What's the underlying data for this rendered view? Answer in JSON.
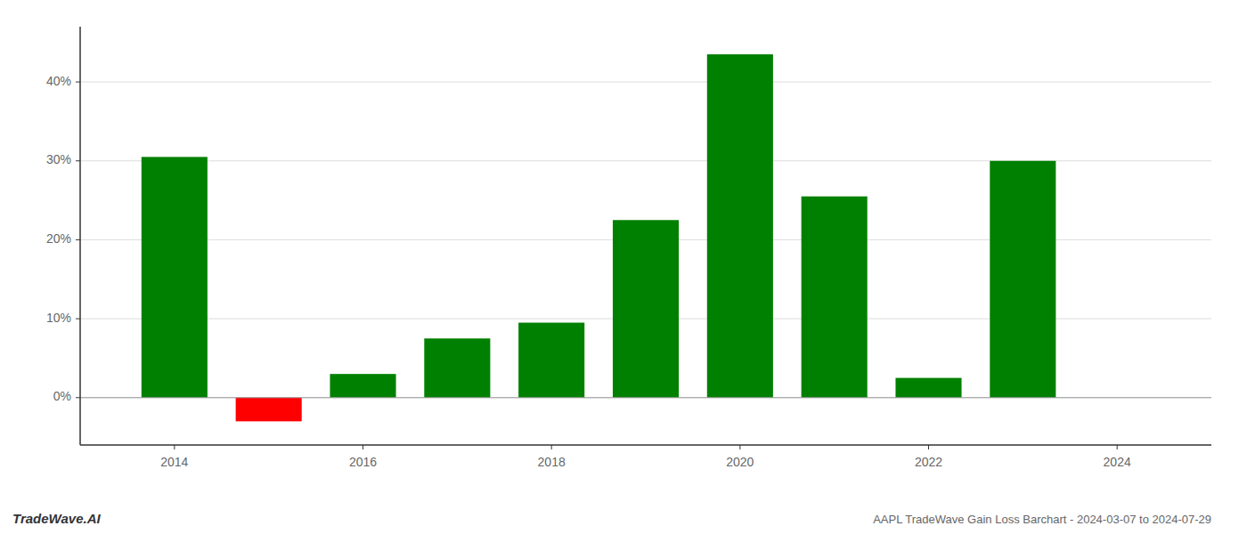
{
  "chart_data": {
    "type": "bar",
    "title": "AAPL TradeWave Gain Loss Barchart - 2024-03-07 to 2024-07-29",
    "annotations": [
      "TradeWave.AI"
    ],
    "x": [
      2014,
      2015,
      2016,
      2017,
      2018,
      2019,
      2020,
      2021,
      2022,
      2023
    ],
    "values": [
      30.5,
      -3.0,
      3.0,
      7.5,
      9.5,
      22.5,
      43.5,
      25.5,
      2.5,
      30.0
    ],
    "colors": [
      "#008000",
      "#ff0000",
      "#008000",
      "#008000",
      "#008000",
      "#008000",
      "#008000",
      "#008000",
      "#008000",
      "#008000"
    ],
    "xlim": [
      2013,
      2025
    ],
    "xticks": [
      2014,
      2016,
      2018,
      2020,
      2022,
      2024
    ],
    "ylim": [
      -6,
      47
    ],
    "yticks": [
      {
        "value": 0,
        "label": "0%"
      },
      {
        "value": 10,
        "label": "10%"
      },
      {
        "value": 20,
        "label": "20%"
      },
      {
        "value": 30,
        "label": "30%"
      },
      {
        "value": 40,
        "label": "40%"
      }
    ],
    "grid": true
  }
}
